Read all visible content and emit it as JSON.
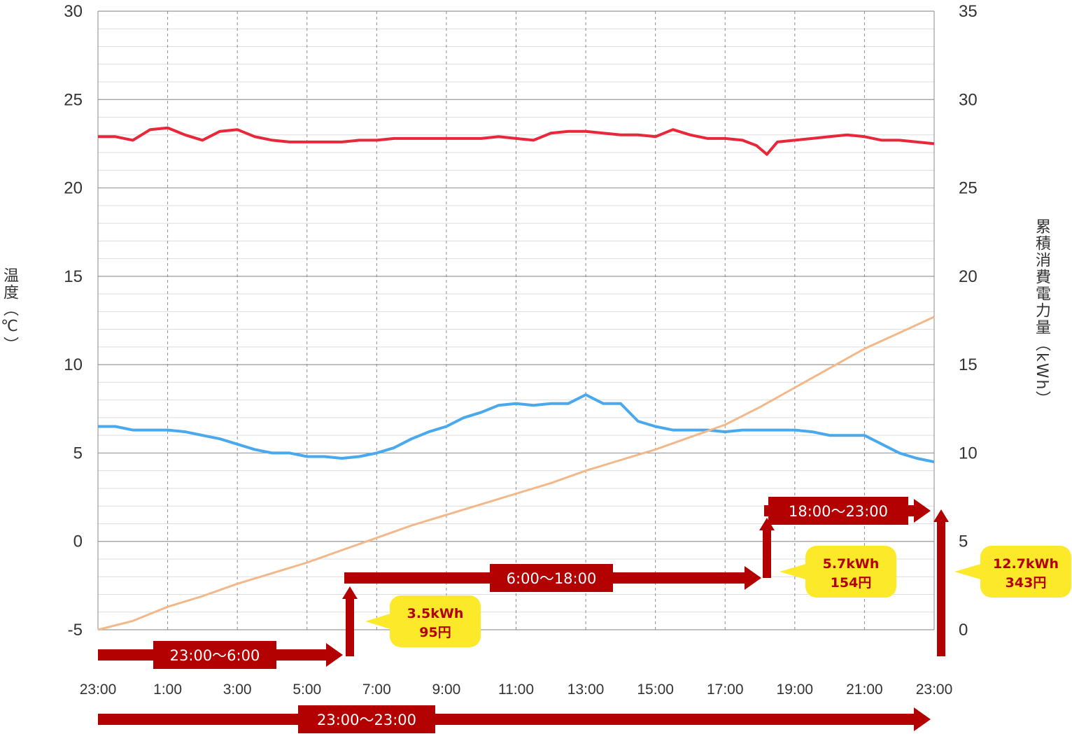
{
  "chart_data": {
    "type": "line",
    "ylabel_left": "温度（℃）",
    "ylabel_right": "累積消費電力量（kWh）",
    "ylim_left": [
      -5,
      30
    ],
    "ylim_right": [
      0,
      35
    ],
    "yticks_left": [
      "30",
      "25",
      "20",
      "15",
      "10",
      "5",
      "0",
      "-5"
    ],
    "yticks_right": [
      "35",
      "30",
      "25",
      "20",
      "15",
      "10",
      "5",
      "0"
    ],
    "x_tick_labels": [
      "23:00",
      "1:00",
      "3:00",
      "5:00",
      "7:00",
      "9:00",
      "11:00",
      "13:00",
      "15:00",
      "17:00",
      "19:00",
      "21:00",
      "23:00"
    ],
    "x_hours_since_start_range": [
      0,
      24
    ],
    "grid": true,
    "series": [
      {
        "axis": "left",
        "color": "#e8283a",
        "x": [
          0,
          0.5,
          1,
          1.5,
          2,
          2.5,
          3,
          3.5,
          4,
          4.5,
          5,
          5.5,
          6,
          6.5,
          7,
          7.5,
          8,
          8.5,
          9,
          9.5,
          10,
          10.5,
          11,
          11.5,
          12,
          12.5,
          13,
          13.5,
          14,
          14.5,
          15,
          15.5,
          16,
          16.5,
          17,
          17.5,
          18,
          18.5,
          18.9,
          19.2,
          19.5,
          20,
          20.5,
          21,
          21.5,
          22,
          22.5,
          23,
          23.5,
          24
        ],
        "values": [
          22.9,
          22.9,
          22.7,
          23.3,
          23.4,
          23.0,
          22.7,
          23.2,
          23.3,
          22.9,
          22.7,
          22.6,
          22.6,
          22.6,
          22.6,
          22.7,
          22.7,
          22.8,
          22.8,
          22.8,
          22.8,
          22.8,
          22.8,
          22.9,
          22.8,
          22.7,
          23.1,
          23.2,
          23.2,
          23.1,
          23.0,
          23.0,
          22.9,
          23.3,
          23.0,
          22.8,
          22.8,
          22.7,
          22.4,
          21.9,
          22.6,
          22.7,
          22.8,
          22.9,
          23.0,
          22.9,
          22.7,
          22.7,
          22.6,
          22.5
        ]
      },
      {
        "axis": "left",
        "color": "#4aa8ec",
        "x": [
          0,
          0.5,
          1,
          1.5,
          2,
          2.5,
          3,
          3.5,
          4,
          4.5,
          5,
          5.5,
          6,
          6.5,
          7,
          7.5,
          8,
          8.5,
          9,
          9.5,
          10,
          10.5,
          11,
          11.5,
          12,
          12.5,
          13,
          13.5,
          14,
          14.5,
          15,
          15.5,
          16,
          16.5,
          17,
          17.5,
          18,
          18.5,
          19,
          19.5,
          20,
          20.5,
          21,
          21.5,
          22,
          22.5,
          23,
          23.5,
          24
        ],
        "values": [
          6.5,
          6.5,
          6.3,
          6.3,
          6.3,
          6.2,
          6.0,
          5.8,
          5.5,
          5.2,
          5.0,
          5.0,
          4.8,
          4.8,
          4.7,
          4.8,
          5.0,
          5.3,
          5.8,
          6.2,
          6.5,
          7.0,
          7.3,
          7.7,
          7.8,
          7.7,
          7.8,
          7.8,
          8.3,
          7.8,
          7.8,
          6.8,
          6.5,
          6.3,
          6.3,
          6.3,
          6.2,
          6.3,
          6.3,
          6.3,
          6.3,
          6.2,
          6.0,
          6.0,
          6.0,
          5.5,
          5.0,
          4.7,
          4.5
        ]
      },
      {
        "axis": "right",
        "color": "#f3b88a",
        "x": [
          0,
          1,
          2,
          3,
          4,
          5,
          6,
          7,
          8,
          9,
          10,
          11,
          12,
          13,
          14,
          15,
          16,
          17,
          18,
          18.5,
          19,
          20,
          21,
          22,
          23,
          24
        ],
        "values": [
          0,
          0.5,
          1.3,
          1.9,
          2.6,
          3.2,
          3.8,
          4.5,
          5.2,
          5.9,
          6.5,
          7.1,
          7.7,
          8.3,
          9.0,
          9.6,
          10.2,
          10.9,
          11.6,
          12.1,
          12.6,
          13.7,
          14.8,
          15.9,
          16.8,
          17.7
        ]
      }
    ],
    "periods": [
      {
        "label": "23:00〜6:00",
        "start_hour": 0,
        "end_hour": 7.2
      },
      {
        "label": "6:00〜18:00",
        "start_hour": 7.2,
        "end_hour": 19.0
      },
      {
        "label": "18:00〜23:00",
        "start_hour": 19.0,
        "end_hour": 23.8
      },
      {
        "label": "23:00〜23:00",
        "start_hour": 0,
        "end_hour": 23.8
      }
    ],
    "callouts": [
      {
        "line1": "3.5kWh",
        "line2": "95円"
      },
      {
        "line1": "5.7kWh",
        "line2": "154円"
      },
      {
        "line1": "12.7kWh",
        "line2": "343円"
      }
    ],
    "colors": {
      "arrow": "#b30000",
      "callout": "#fce92a",
      "grid_major": "#9a9a9a",
      "grid_minor": "#dddddd"
    }
  }
}
